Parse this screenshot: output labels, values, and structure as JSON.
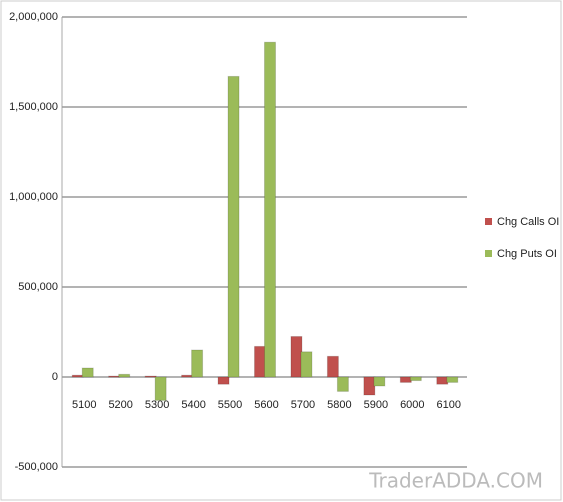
{
  "chart_data": {
    "type": "bar",
    "categories": [
      "5100",
      "5200",
      "5300",
      "5400",
      "5500",
      "5600",
      "5700",
      "5800",
      "5900",
      "6000",
      "6100"
    ],
    "series": [
      {
        "name": "Chg Calls OI",
        "color": "#c0504d",
        "values": [
          10000,
          5000,
          5000,
          10000,
          -40000,
          170000,
          225000,
          115000,
          -100000,
          -30000,
          -40000
        ]
      },
      {
        "name": "Chg Puts OI",
        "color": "#9bbb59",
        "values": [
          50000,
          15000,
          -130000,
          150000,
          1670000,
          1860000,
          140000,
          -80000,
          -50000,
          -20000,
          -30000
        ]
      }
    ],
    "ylim": [
      -500000,
      2000000
    ],
    "yticks": [
      {
        "value": -500000,
        "label": "-500,000"
      },
      0,
      {
        "value": 500000,
        "label": "500,000"
      },
      {
        "value": 1000000,
        "label": "1,000,000"
      },
      {
        "value": 1500000,
        "label": "1,500,000"
      },
      {
        "value": 2000000,
        "label": "2,000,000"
      }
    ],
    "grid": true,
    "legend": "right",
    "watermark": "TraderADDA.COM"
  }
}
